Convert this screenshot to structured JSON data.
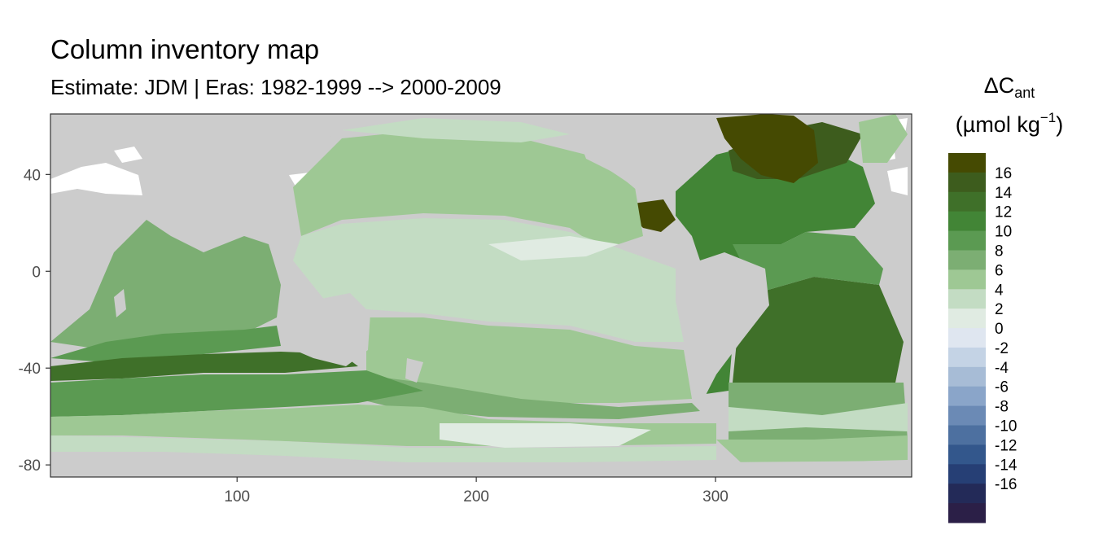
{
  "title": "Column inventory map",
  "subtitle": "Estimate: JDM  | Eras: 1982-1999 --> 2000-2009",
  "legend": {
    "title_symbol": "ΔC",
    "title_subscript": "ant",
    "unit_prefix": "(µmol kg",
    "unit_superscript": "−1",
    "unit_suffix": ")",
    "labels": [
      "16",
      "14",
      "12",
      "10",
      "8",
      "6",
      "4",
      "2",
      "0",
      "-2",
      "-4",
      "-6",
      "-8",
      "-10",
      "-12",
      "-14",
      "-16"
    ],
    "colors": [
      "#454a02",
      "#3d5c1d",
      "#3f7029",
      "#428536",
      "#5b9a52",
      "#7cae73",
      "#9ec894",
      "#c3dcc3",
      "#e0ebe2",
      "#dfe6f0",
      "#c4d3e5",
      "#a7bcd6",
      "#8aa5c9",
      "#6b8ab5",
      "#4d70a0",
      "#33578c",
      "#263f75",
      "#232a58",
      "#2b1f47"
    ]
  },
  "map_data": {
    "land_color": "#cccccc",
    "background_color": "#ffffff",
    "xlim": [
      22,
      382
    ],
    "ylim": [
      -85,
      65
    ],
    "x_ticks": [
      100,
      200,
      300
    ],
    "y_ticks": [
      40,
      0,
      -40,
      -80
    ]
  }
}
